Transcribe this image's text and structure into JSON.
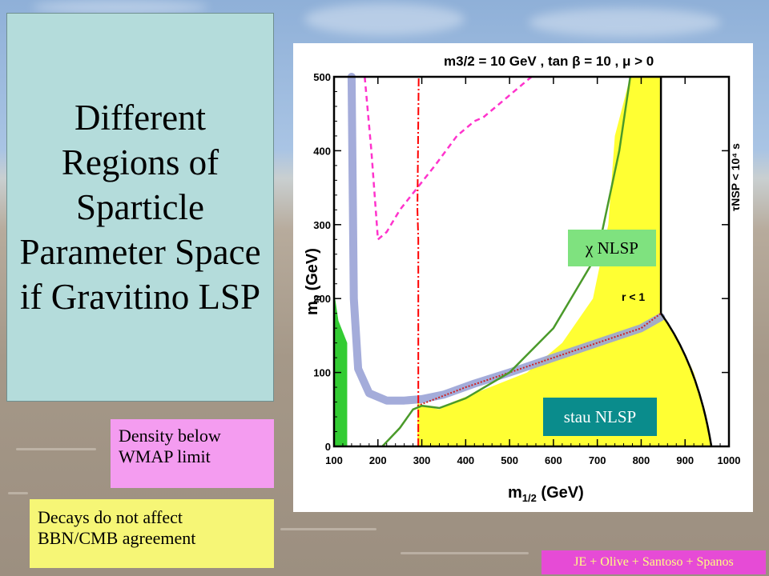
{
  "slide": {
    "title": "Different Regions of Sparticle Parameter Space if Gravitino LSP",
    "notes": {
      "density": "Density below\nWMAP limit",
      "decays": "Decays do not affect\nBBN/CMB agreement"
    },
    "credit": "JE + Olive + Santoso + Spanos",
    "colors": {
      "title_box": "#b4dcdb",
      "density_note": "#f49cf0",
      "decays_note": "#f6f676",
      "credit_bg": "#e64bd6",
      "credit_text": "#ffff80"
    }
  },
  "plot": {
    "header": "m3/2 = 10 GeV , tan β = 10 , μ > 0",
    "x_label_main": "m",
    "x_label_sub": "1/2",
    "x_label_unit": " (GeV)",
    "y_label_main": "m",
    "y_label_sub": "0",
    "y_label_unit": " (GeV)",
    "tau_label": "τNSP < 10⁴ s",
    "r_label": "r < 1",
    "chi_label": "χ NLSP",
    "stau_label": "stau NLSP",
    "x_ticks": [
      "100",
      "200",
      "300",
      "400",
      "500",
      "600",
      "700",
      "800",
      "900",
      "1000"
    ],
    "y_ticks": [
      "0",
      "100",
      "200",
      "300",
      "400",
      "500"
    ],
    "colors": {
      "allowed_region": "#ffff33",
      "wmap_strip": "#33cc33",
      "density_band": "#9aa3d6",
      "higgs_line": "#ff0000",
      "bsg_line": "#ff33cc",
      "chi_box": "#7fe27f",
      "stau_box": "#0a8c8c"
    }
  },
  "chart_data": {
    "type": "area",
    "title": "m3/2 = 10 GeV , tan β = 10 , μ > 0",
    "xlabel": "m1/2 (GeV)",
    "ylabel": "m0 (GeV)",
    "xlim": [
      100,
      1000
    ],
    "ylim": [
      0,
      500
    ],
    "x_ticks": [
      100,
      200,
      300,
      400,
      500,
      600,
      700,
      800,
      900,
      1000
    ],
    "y_ticks": [
      0,
      100,
      200,
      300,
      400,
      500
    ],
    "regions": [
      {
        "name": "yellow_region",
        "polygon": [
          [
            290,
            0
          ],
          [
            960,
            0
          ],
          [
            945,
            50
          ],
          [
            920,
            100
          ],
          [
            880,
            150
          ],
          [
            845,
            180
          ],
          [
            845,
            500
          ],
          [
            775,
            500
          ],
          [
            740,
            420
          ],
          [
            725,
            300
          ],
          [
            690,
            200
          ],
          [
            620,
            140
          ],
          [
            540,
            100
          ],
          [
            370,
            60
          ],
          [
            340,
            50
          ],
          [
            300,
            55
          ],
          [
            290,
            60
          ]
        ]
      },
      {
        "name": "green_strip",
        "polygon": [
          [
            100,
            0
          ],
          [
            130,
            0
          ],
          [
            130,
            140
          ],
          [
            110,
            170
          ],
          [
            100,
            210
          ]
        ]
      }
    ],
    "series": [
      {
        "name": "density_band",
        "x": [
          140,
          145,
          155,
          180,
          220,
          260,
          300,
          350,
          420,
          500,
          600,
          700,
          800,
          845
        ],
        "y": [
          500,
          200,
          105,
          72,
          62,
          62,
          64,
          70,
          85,
          100,
          120,
          140,
          160,
          175
        ]
      },
      {
        "name": "magenta_dashed",
        "x": [
          170,
          185,
          200,
          220,
          250,
          290,
          330,
          380,
          420,
          440,
          500,
          530,
          550
        ],
        "y": [
          500,
          400,
          280,
          290,
          320,
          350,
          380,
          420,
          440,
          445,
          475,
          490,
          500
        ]
      },
      {
        "name": "red_vertical",
        "x": [
          292,
          292,
          290,
          293
        ],
        "y": [
          0,
          280,
          320,
          500
        ]
      },
      {
        "name": "red_diagonal",
        "x": [
          290,
          400,
          500,
          600,
          700,
          800,
          845
        ],
        "y": [
          55,
          80,
          100,
          120,
          140,
          160,
          180
        ]
      },
      {
        "name": "green_boundary",
        "x": [
          210,
          250,
          280,
          300,
          340,
          400,
          500,
          600,
          700,
          750,
          775
        ],
        "y": [
          0,
          25,
          50,
          55,
          52,
          65,
          100,
          160,
          260,
          400,
          500
        ]
      }
    ]
  }
}
